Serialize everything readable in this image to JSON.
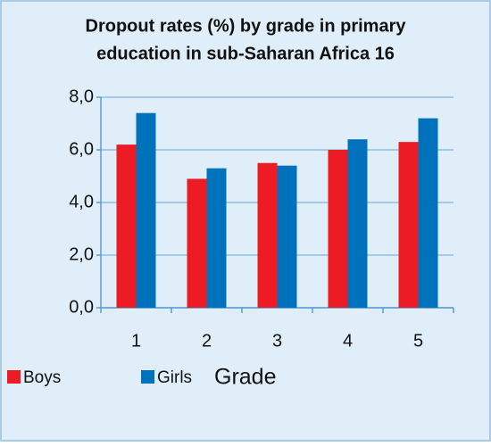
{
  "chart_data": {
    "type": "bar",
    "title": [
      "Dropout rates (%) by grade in primary",
      "education in sub-Saharan Africa 16"
    ],
    "x_label": "Grade",
    "categories": [
      "1",
      "2",
      "3",
      "4",
      "5"
    ],
    "series": [
      {
        "name": "Boys",
        "color": "#ed1c24",
        "values": [
          6.2,
          4.9,
          5.5,
          6.0,
          6.3
        ]
      },
      {
        "name": "Girls",
        "color": "#0072bc",
        "values": [
          7.4,
          5.3,
          5.4,
          6.4,
          7.2
        ]
      }
    ],
    "ylim": [
      0,
      8
    ],
    "yticks": [
      {
        "value": 0,
        "label": "0,0"
      },
      {
        "value": 2,
        "label": "2,0"
      },
      {
        "value": 4,
        "label": "4,0"
      },
      {
        "value": 6,
        "label": "6,0"
      },
      {
        "value": 8,
        "label": "8,0"
      }
    ],
    "grid": true
  }
}
